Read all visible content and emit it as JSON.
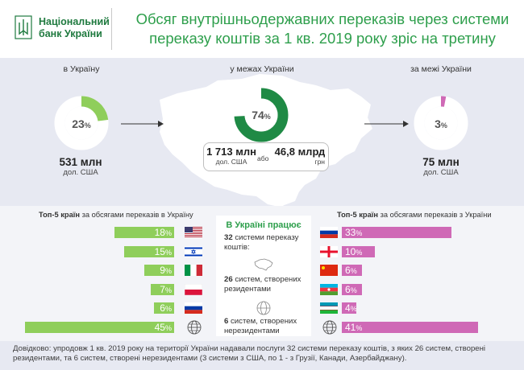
{
  "header": {
    "logo_line1": "Національний",
    "logo_line2": "банк України",
    "title": "Обсяг внутрішньодержавних переказів через системи переказу коштів за 1 кв. 2019 року зріс на третину"
  },
  "columns": {
    "left": {
      "label": "в Україну",
      "percent": "23",
      "percent_sign": "%",
      "share": 0.23,
      "amount": "531 млн",
      "unit": "дол. США",
      "color": "#8fce5b"
    },
    "center": {
      "label": "у межах України",
      "percent": "74",
      "percent_sign": "%",
      "share": 0.74,
      "amount_usd": "1 713 млн",
      "unit_usd": "дол. США",
      "or": "або",
      "amount_uah": "46,8 млрд",
      "unit_uah": "грн",
      "color": "#1f8a45"
    },
    "right": {
      "label": "за межі України",
      "percent": "3",
      "percent_sign": "%",
      "share": 0.03,
      "amount": "75 млн",
      "unit": "дол. США",
      "color": "#cf69b6"
    }
  },
  "left_list": {
    "title_bold": "Топ-5 країн",
    "title_rest": " за обсягами переказів в Україну",
    "items": [
      {
        "value": "18",
        "share": 18,
        "flag": "usa-flag"
      },
      {
        "value": "15",
        "share": 15,
        "flag": "israel-flag"
      },
      {
        "value": "9",
        "share": 9,
        "flag": "italy-flag"
      },
      {
        "value": "7",
        "share": 7,
        "flag": "poland-flag"
      },
      {
        "value": "6",
        "share": 6,
        "flag": "russia-flag"
      },
      {
        "value": "45",
        "share": 45,
        "flag": "globe-icon"
      }
    ]
  },
  "right_list": {
    "title_bold": "Топ-5 країн",
    "title_rest": " за обсягами переказів з України",
    "items": [
      {
        "value": "33",
        "share": 33,
        "flag": "russia-flag"
      },
      {
        "value": "10",
        "share": 10,
        "flag": "georgia-flag"
      },
      {
        "value": "6",
        "share": 6,
        "flag": "china-flag"
      },
      {
        "value": "6",
        "share": 6,
        "flag": "azerbaijan-flag"
      },
      {
        "value": "4",
        "share": 4,
        "flag": "uzbekistan-flag"
      },
      {
        "value": "41",
        "share": 41,
        "flag": "globe-icon"
      }
    ]
  },
  "middle": {
    "title": "В Україні працює",
    "block1_bold": "32",
    "block1_rest": " системи переказу коштів:",
    "block2_bold": "26",
    "block2_rest": " систем, створених резидентами",
    "block3_bold": "6",
    "block3_rest": " систем, створених нерезидентами"
  },
  "footer": {
    "text": "Довідково: упродовж 1 кв. 2019 року на території України надавали послуги 32 системи переказу коштів, з яких 26 систем, створені резидентами, та 6 систем, створені нерезидентами (3 системи з США, по 1 - з Грузії, Канади, Азербайджану)."
  }
}
